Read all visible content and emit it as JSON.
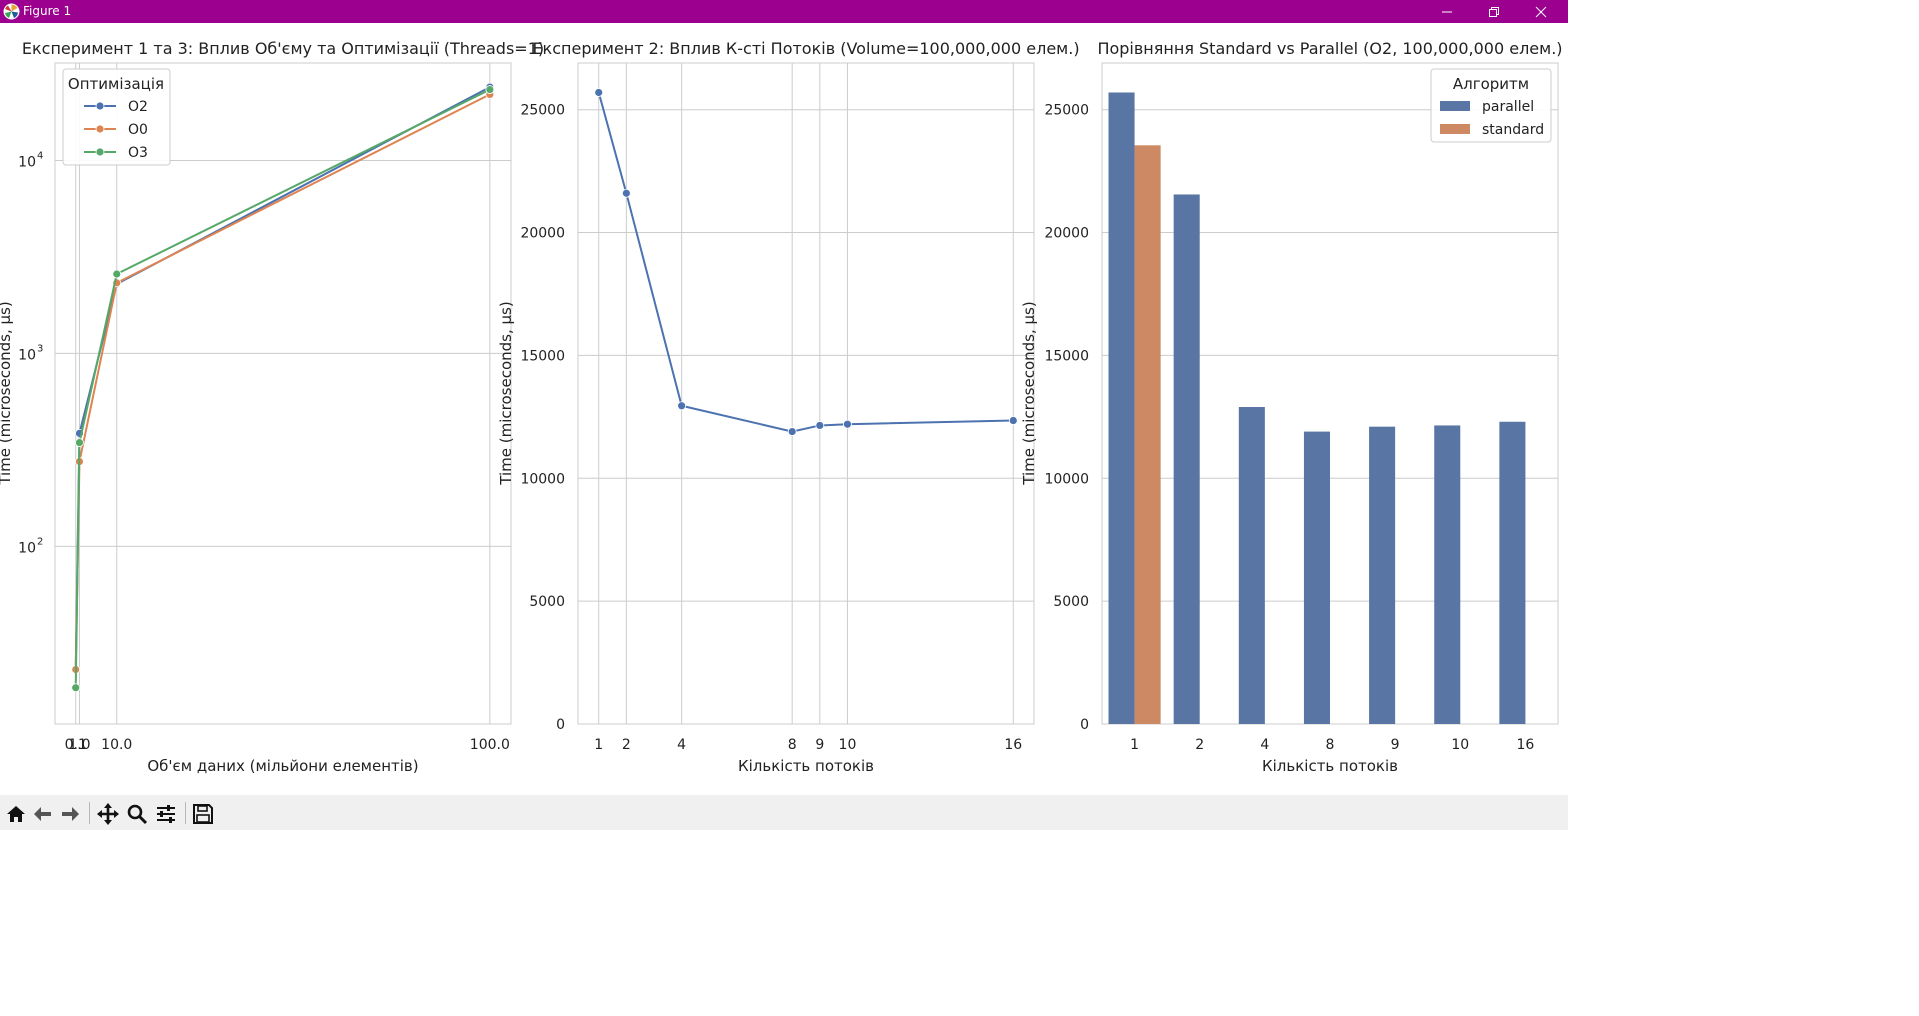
{
  "window": {
    "title": "Figure 1",
    "icons": {
      "app": "matplotlib-icon",
      "minimize": "minimize-icon",
      "restore": "restore-icon",
      "close": "close-icon"
    }
  },
  "toolbar": {
    "buttons": [
      {
        "name": "home",
        "icon": "home-icon"
      },
      {
        "name": "back",
        "icon": "arrow-left-icon"
      },
      {
        "name": "forward",
        "icon": "arrow-right-icon"
      },
      {
        "name": "pan",
        "icon": "move-icon"
      },
      {
        "name": "zoom",
        "icon": "magnifier-icon"
      },
      {
        "name": "configure",
        "icon": "sliders-icon"
      },
      {
        "name": "save",
        "icon": "floppy-icon"
      }
    ]
  },
  "chart_data": [
    {
      "type": "line",
      "title": "Експеримент 1 та 3: Вплив Об'єму та Оптимізації (Threads=1)",
      "xlabel": "Об'єм даних (мільйони елементів)",
      "ylabel": "Time (microseconds, μs)",
      "yscale": "log",
      "xlim": [
        -4.9,
        105.1
      ],
      "ylim": [
        12,
        32000
      ],
      "x_ticks": [
        0.1,
        1.0,
        10.0,
        100.0
      ],
      "x_tick_labels": [
        "0.1",
        "1.0",
        "10.0",
        "100.0"
      ],
      "y_ticks": [
        100,
        1000,
        10000
      ],
      "y_tick_labels": [
        "10",
        "10",
        "10"
      ],
      "y_tick_exponents": [
        "2",
        "3",
        "4"
      ],
      "x": [
        0.1,
        1.0,
        10.0,
        100.0
      ],
      "series": [
        {
          "name": "O2",
          "color": "#4c72b0",
          "values": [
            23,
            385,
            2290,
            24000
          ]
        },
        {
          "name": "O0",
          "color": "#dd8452",
          "values": [
            23,
            275,
            2320,
            22000
          ]
        },
        {
          "name": "O3",
          "color": "#55a868",
          "values": [
            18.5,
            345,
            2580,
            23300
          ]
        }
      ],
      "grid": true,
      "legend": {
        "title": "Оптимізація",
        "placement": "top-left"
      }
    },
    {
      "type": "line",
      "title": "Експеримент 2: Вплив К-сті Потоків (Volume=100,000,000 елем.)",
      "xlabel": "Кількість потоків",
      "ylabel": "Time (microseconds, μs)",
      "xlim": [
        0.25,
        16.75
      ],
      "ylim": [
        0,
        26900
      ],
      "x_ticks": [
        1,
        2,
        4,
        8,
        9,
        10,
        16
      ],
      "x_tick_labels": [
        "1",
        "2",
        "4",
        "8",
        "9",
        "10",
        "16"
      ],
      "y_ticks": [
        0,
        5000,
        10000,
        15000,
        20000,
        25000
      ],
      "y_tick_labels": [
        "0",
        "5000",
        "10000",
        "15000",
        "20000",
        "25000"
      ],
      "x": [
        1,
        2,
        4,
        8,
        9,
        10,
        16
      ],
      "series": [
        {
          "color": "#4c72b0",
          "values": [
            25700,
            21600,
            12950,
            11900,
            12150,
            12200,
            12350
          ]
        }
      ],
      "grid": true
    },
    {
      "type": "bar",
      "title": "Порівняння Standard vs Parallel (O2, 100,000,000 елем.)",
      "xlabel": "Кількість потоків",
      "ylabel": "Time (microseconds, μs)",
      "ylim": [
        0,
        26900
      ],
      "categories": [
        "1",
        "2",
        "4",
        "8",
        "9",
        "10",
        "16"
      ],
      "y_ticks": [
        0,
        5000,
        10000,
        15000,
        20000,
        25000
      ],
      "y_tick_labels": [
        "0",
        "5000",
        "10000",
        "15000",
        "20000",
        "25000"
      ],
      "series": [
        {
          "name": "parallel",
          "color": "#5975a4",
          "values": [
            25700,
            21550,
            12900,
            11900,
            12100,
            12150,
            12300
          ]
        },
        {
          "name": "standard",
          "color": "#cc8963",
          "values": [
            23550,
            null,
            null,
            null,
            null,
            null,
            null
          ]
        }
      ],
      "grid": true,
      "legend": {
        "title": "Алгоритм",
        "placement": "top-right"
      }
    }
  ]
}
